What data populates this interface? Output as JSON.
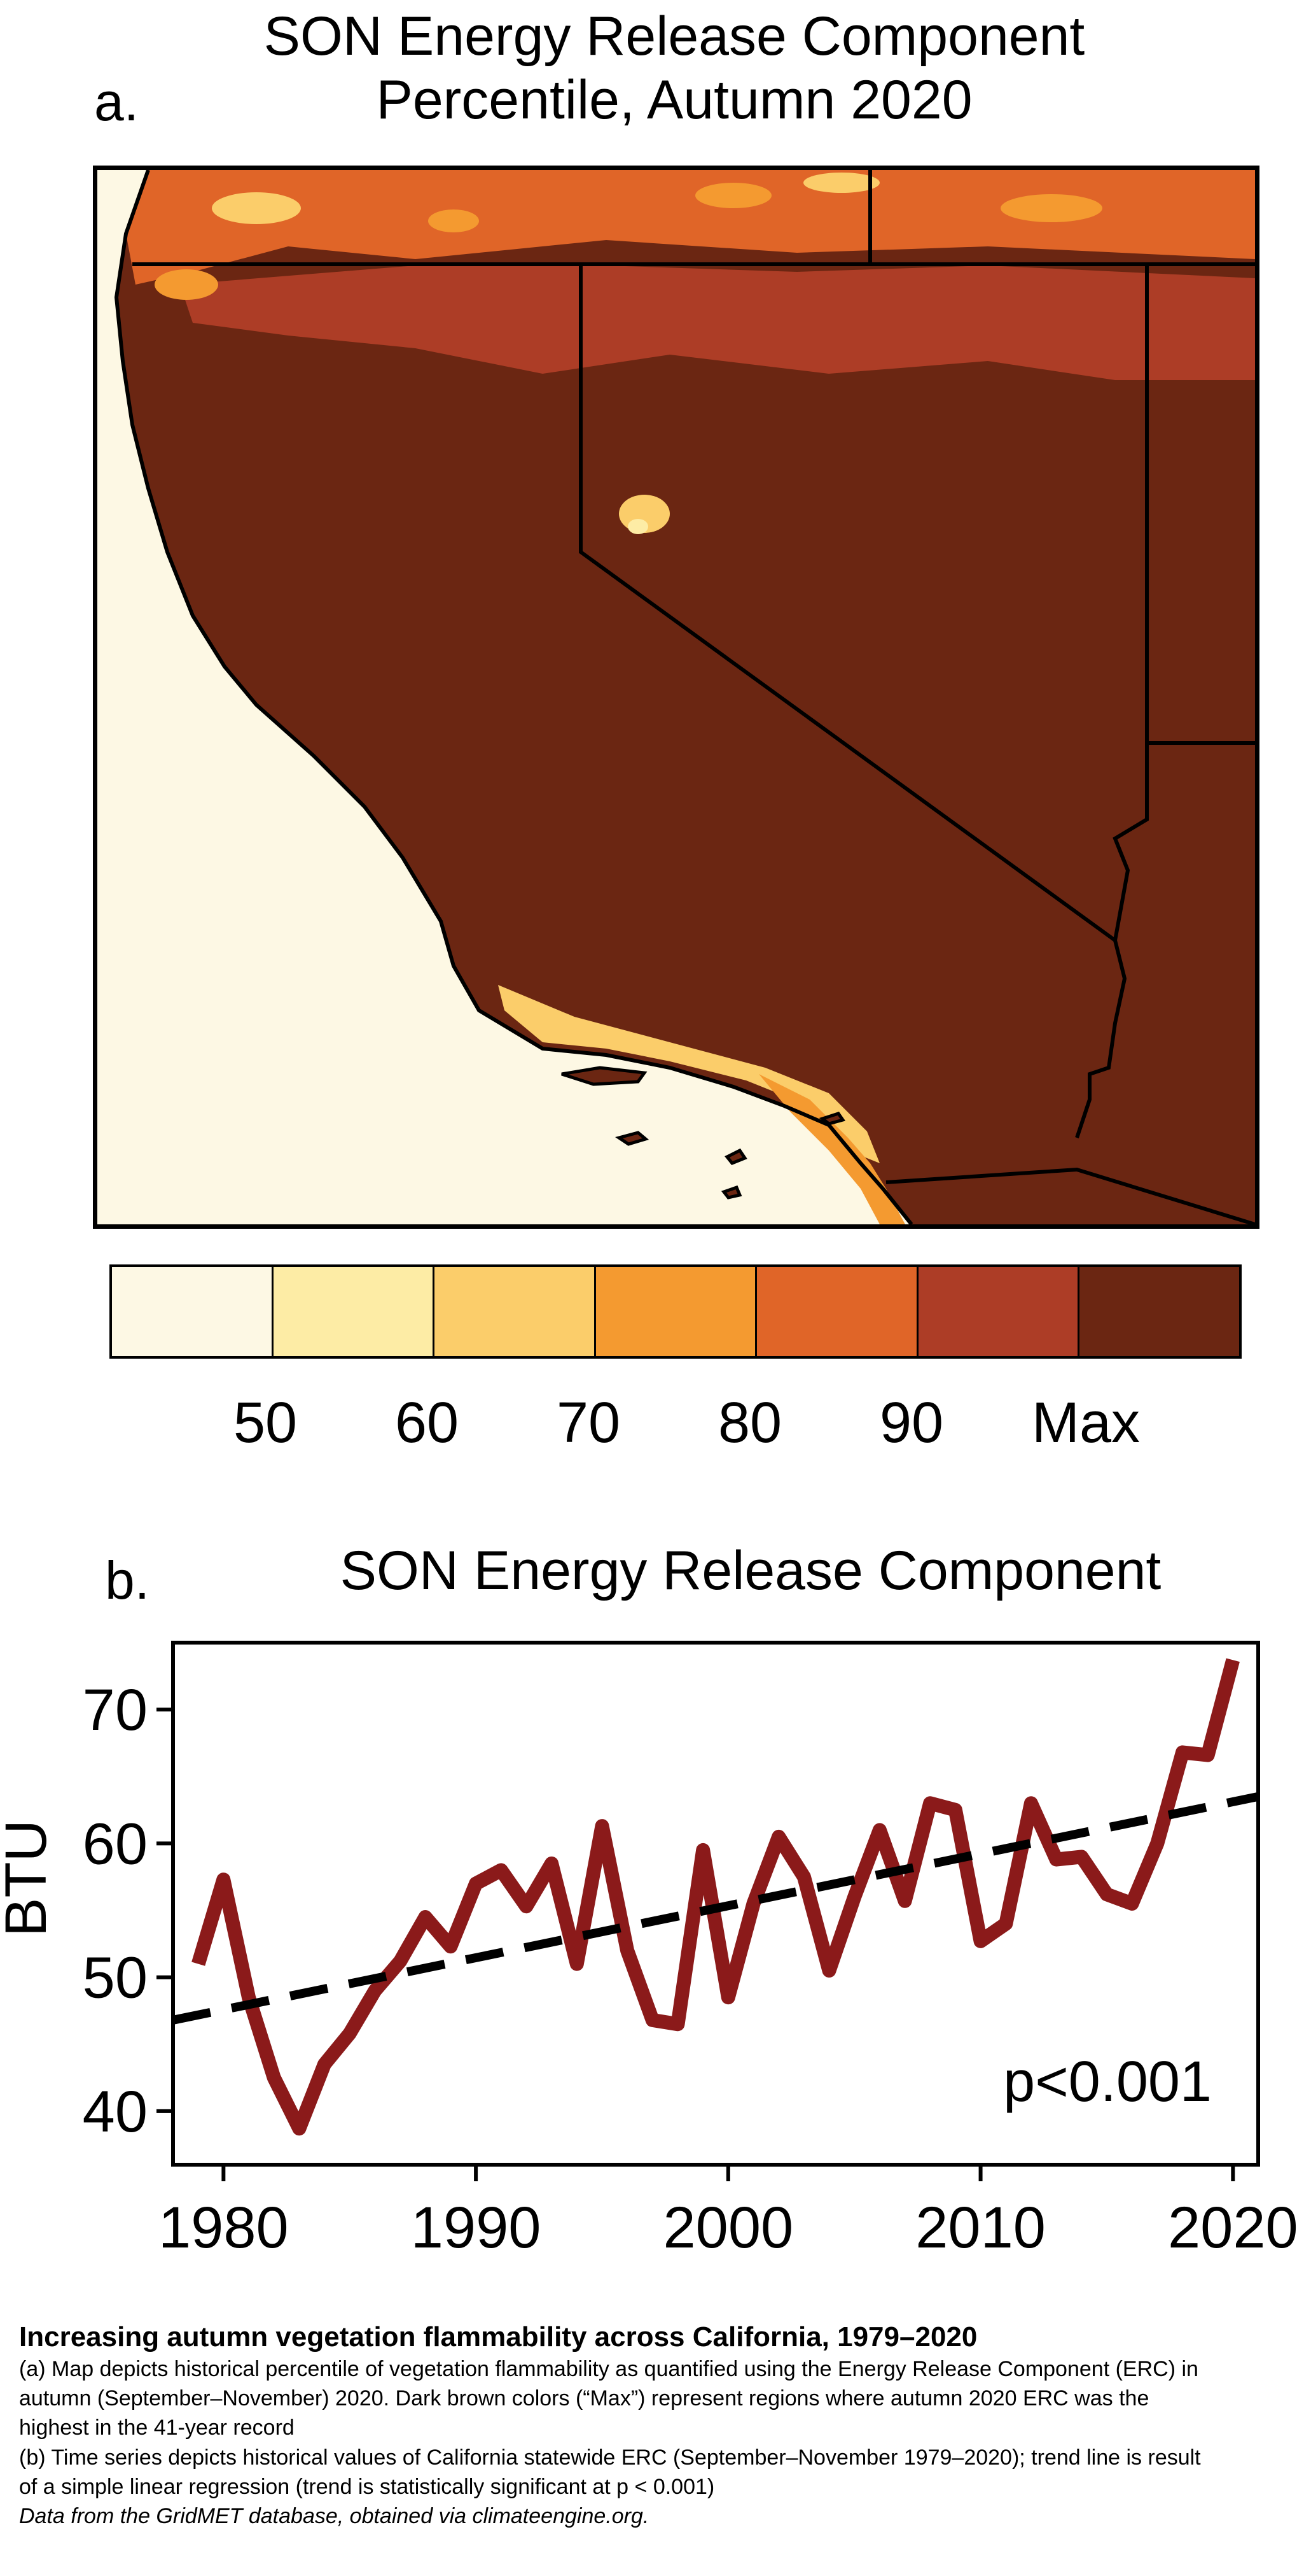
{
  "panel_a": {
    "label": "a.",
    "title_line1": "SON Energy Release Component",
    "title_line2": "Percentile, Autumn 2020",
    "legend": {
      "colors": [
        "#fdf8e4",
        "#fdeca5",
        "#fbcd6a",
        "#f49a30",
        "#e06528",
        "#ad3d26",
        "#6b2612"
      ],
      "labels": [
        "50",
        "60",
        "70",
        "80",
        "90",
        "Max"
      ]
    }
  },
  "panel_b": {
    "label": "b.",
    "title": "SON Energy Release Component",
    "ylabel": "BTU",
    "pvalue": "p<0.001"
  },
  "chart_data": {
    "type": "line",
    "title": "SON Energy Release Component",
    "xlabel": "",
    "ylabel": "BTU",
    "xlim": [
      1978,
      2021
    ],
    "ylim": [
      36,
      75
    ],
    "xticks": [
      1980,
      1990,
      2000,
      2010,
      2020
    ],
    "yticks": [
      40,
      50,
      60,
      70
    ],
    "grid": false,
    "series": [
      {
        "style": "solid",
        "color": "#8b1a1a",
        "x": [
          1979,
          1980,
          1981,
          1982,
          1983,
          1984,
          1985,
          1986,
          1987,
          1988,
          1989,
          1990,
          1991,
          1992,
          1993,
          1994,
          1995,
          1996,
          1997,
          1998,
          1999,
          2000,
          2001,
          2002,
          2003,
          2004,
          2005,
          2006,
          2007,
          2008,
          2009,
          2010,
          2011,
          2012,
          2013,
          2014,
          2015,
          2016,
          2017,
          2018,
          2019,
          2020
        ],
        "y": [
          51.0,
          57.3,
          48.5,
          42.5,
          38.7,
          43.5,
          45.8,
          49.0,
          51.2,
          54.5,
          52.3,
          57.0,
          58.0,
          55.3,
          58.5,
          51.0,
          61.3,
          52.0,
          46.8,
          46.5,
          59.5,
          48.5,
          55.5,
          60.5,
          57.5,
          50.5,
          56.0,
          61.0,
          55.7,
          63.0,
          62.5,
          52.7,
          54.0,
          63.0,
          58.8,
          59.0,
          56.2,
          55.5,
          60.0,
          66.8,
          66.6,
          73.7
        ]
      },
      {
        "style": "dashed",
        "color": "#000000",
        "x": [
          1978,
          2021
        ],
        "y": [
          46.8,
          63.5
        ]
      }
    ],
    "annotations": [
      "p<0.001"
    ]
  },
  "caption": {
    "title": "Increasing autumn vegetation flammability across California, 1979–2020",
    "a_line1": "(a) Map depicts historical percentile of vegetation flammability as quantified using the Energy Release Component (ERC) in",
    "a_line2": "autumn (September–November) 2020. Dark brown colors (“Max”) represent regions where autumn 2020 ERC was the",
    "a_line3": "highest in the 41-year record",
    "b_line1": "(b) Time series depicts historical values of California statewide ERC (September–November 1979–2020); trend line is result",
    "b_line2": "of a simple linear regression (trend is statistically significant at p < 0.001)",
    "source": "Data from the GridMET database, obtained via climateengine.org."
  }
}
